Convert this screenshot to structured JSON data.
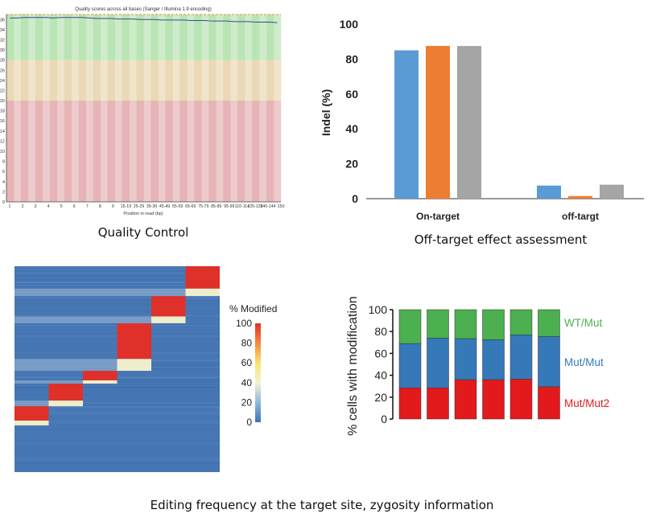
{
  "captions": {
    "qc": "Quality Control",
    "offtarget": "Off-target effect assessment",
    "editing": "Editing frequency at the target site, zygosity information"
  },
  "chart_data": [
    {
      "type": "line",
      "title": "Quality scores across all bases (Sanger / Illumina 1.9 encoding)",
      "xlabel": "Position in read (bp)",
      "ylabel": "",
      "ylim": [
        0,
        37
      ],
      "yticks": [
        0,
        2,
        4,
        6,
        8,
        10,
        12,
        14,
        16,
        18,
        20,
        22,
        24,
        26,
        28,
        30,
        32,
        34,
        36
      ],
      "xtick_labels": [
        "1",
        "2",
        "3",
        "4",
        "5",
        "6",
        "7",
        "8",
        "9",
        "15-19",
        "25-29",
        "35-39",
        "45-49",
        "55-59",
        "65-69",
        "75-79",
        "85-89",
        "95-99",
        "110-114",
        "125-129",
        "140-144",
        "150"
      ],
      "bands": [
        {
          "from": 28,
          "to": 37,
          "color": "#b9e4b4"
        },
        {
          "from": 20,
          "to": 28,
          "color": "#ead9b4"
        },
        {
          "from": 0,
          "to": 20,
          "color": "#e6b4b6"
        }
      ],
      "mean_line_color": "#2f4f8f",
      "mean_quality": [
        36.3,
        36.3,
        36.4,
        36.4,
        36.4,
        36.4,
        36.3,
        36.4,
        36.4,
        36.4,
        36.4,
        36.3,
        36.2,
        36.2,
        36.2,
        36.1,
        36.1,
        36.1,
        36.0,
        36.0,
        36.0,
        35.9,
        35.9,
        35.9,
        35.9,
        35.8,
        35.8,
        35.8,
        35.7,
        35.7,
        35.7,
        35.6,
        35.6,
        35.6,
        35.5,
        35.5,
        35.5,
        35.4
      ]
    },
    {
      "type": "bar",
      "title": "",
      "xlabel": "",
      "ylabel": "Indel (%)",
      "ylim": [
        0,
        100
      ],
      "yticks": [
        0,
        20,
        40,
        60,
        80,
        100
      ],
      "categories": [
        "On-target",
        "off-targt"
      ],
      "series": [
        {
          "color": "#5b9bd5",
          "values": [
            85,
            7.5
          ]
        },
        {
          "color": "#ed7d31",
          "values": [
            87.5,
            1.5
          ]
        },
        {
          "color": "#a5a5a5",
          "values": [
            87.5,
            8
          ]
        }
      ]
    },
    {
      "type": "heatmap",
      "title": "% Modified",
      "colorbar_ticks": [
        0,
        20,
        40,
        60,
        80,
        100
      ],
      "colorscale": [
        "#3e74b5",
        "#8fb8dc",
        "#f2f2d0",
        "#fde26b",
        "#f48a3c",
        "#e0302a"
      ],
      "columns": 6,
      "modified_blocks": [
        {
          "column": 1,
          "rows_fraction": [
            0.68,
            0.773
          ]
        },
        {
          "column": 2,
          "rows_fraction": [
            0.57,
            0.68
          ]
        },
        {
          "column": 3,
          "rows_fraction": [
            0.508,
            0.57
          ]
        },
        {
          "column": 4,
          "rows_fraction": [
            0.277,
            0.508
          ]
        },
        {
          "column": 5,
          "rows_fraction": [
            0.145,
            0.277
          ]
        },
        {
          "column": 6,
          "rows_fraction": [
            0.0,
            0.145
          ]
        }
      ]
    },
    {
      "type": "bar",
      "stacked": true,
      "title": "",
      "xlabel": "",
      "ylabel": "% cells with modification",
      "ylim": [
        0,
        100
      ],
      "yticks": [
        0,
        20,
        40,
        60,
        80,
        100
      ],
      "legend": "right",
      "series": [
        {
          "name": "Mut/Mut2",
          "color": "#e31a1c",
          "values": [
            28.5,
            28.5,
            36,
            36,
            36.5,
            29.5
          ]
        },
        {
          "name": "Mut/Mut",
          "color": "#3579b8",
          "values": [
            40.5,
            45.5,
            37.5,
            36.5,
            40.5,
            46
          ]
        },
        {
          "name": "WT/Mut",
          "color": "#4caf50",
          "values": [
            31,
            26,
            26.5,
            27.5,
            23,
            24.5
          ]
        }
      ]
    }
  ]
}
